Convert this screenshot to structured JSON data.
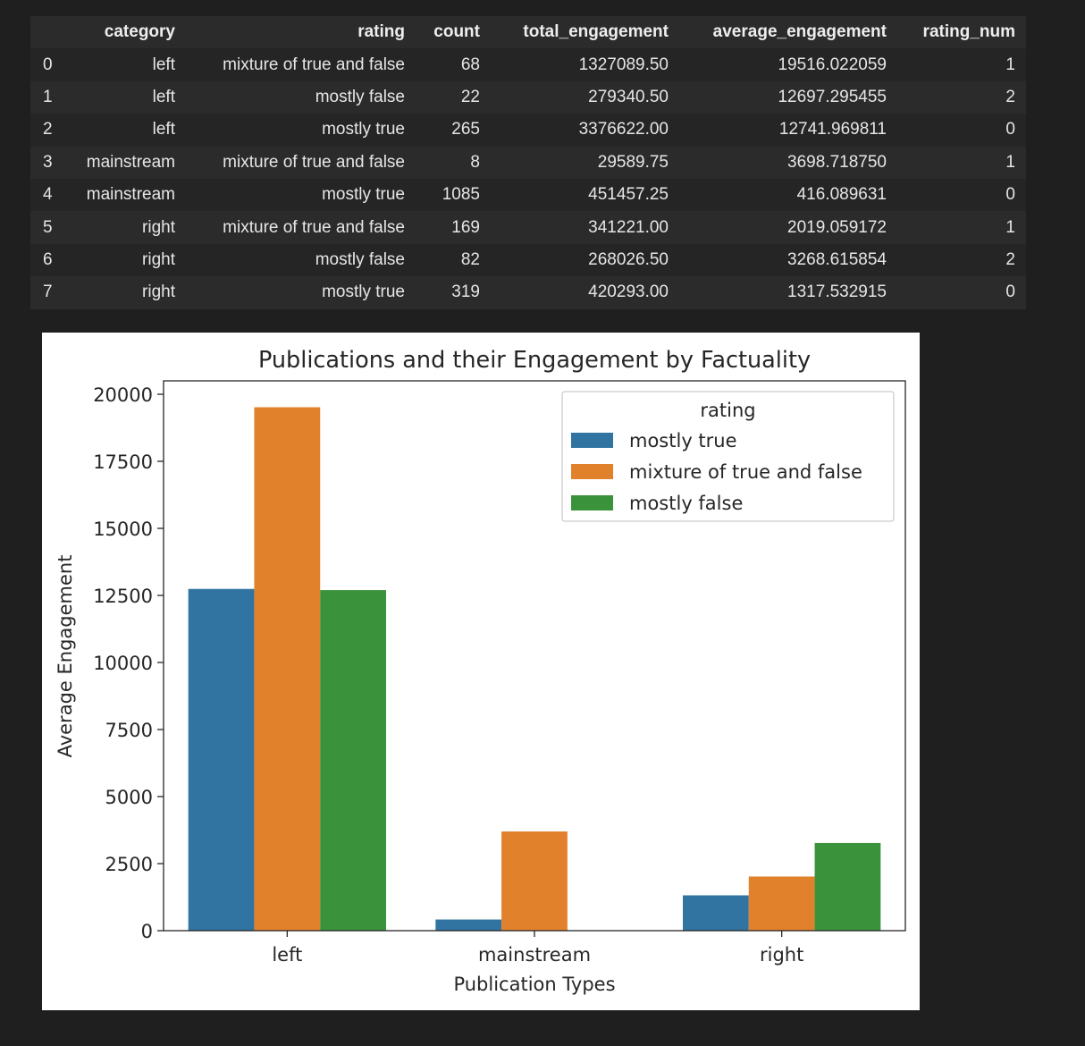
{
  "dataframe": {
    "columns": [
      "",
      "category",
      "rating",
      "count",
      "total_engagement",
      "average_engagement",
      "rating_num"
    ],
    "rows": [
      [
        "0",
        "left",
        "mixture of true and false",
        "68",
        "1327089.50",
        "19516.022059",
        "1"
      ],
      [
        "1",
        "left",
        "mostly false",
        "22",
        "279340.50",
        "12697.295455",
        "2"
      ],
      [
        "2",
        "left",
        "mostly true",
        "265",
        "3376622.00",
        "12741.969811",
        "0"
      ],
      [
        "3",
        "mainstream",
        "mixture of true and false",
        "8",
        "29589.75",
        "3698.718750",
        "1"
      ],
      [
        "4",
        "mainstream",
        "mostly true",
        "1085",
        "451457.25",
        "416.089631",
        "0"
      ],
      [
        "5",
        "right",
        "mixture of true and false",
        "169",
        "341221.00",
        "2019.059172",
        "1"
      ],
      [
        "6",
        "right",
        "mostly false",
        "82",
        "268026.50",
        "3268.615854",
        "2"
      ],
      [
        "7",
        "right",
        "mostly true",
        "319",
        "420293.00",
        "1317.532915",
        "0"
      ]
    ]
  },
  "chart_data": {
    "type": "bar",
    "title": "Publications and their Engagement by Factuality",
    "xlabel": "Publication Types",
    "ylabel": "Average Engagement",
    "categories": [
      "left",
      "mainstream",
      "right"
    ],
    "ylim": [
      0,
      20500
    ],
    "yticks": [
      0,
      2500,
      5000,
      7500,
      10000,
      12500,
      15000,
      17500,
      20000
    ],
    "legend": {
      "title": "rating",
      "placement": "top-right"
    },
    "grid": false,
    "series": [
      {
        "name": "mostly true",
        "color": "#3274a1",
        "values": [
          12741.97,
          416.09,
          1317.53
        ]
      },
      {
        "name": "mixture of true and false",
        "color": "#e1812c",
        "values": [
          19516.02,
          3698.72,
          2019.06
        ]
      },
      {
        "name": "mostly false",
        "color": "#3a923a",
        "values": [
          12697.3,
          null,
          3268.62
        ]
      }
    ]
  }
}
